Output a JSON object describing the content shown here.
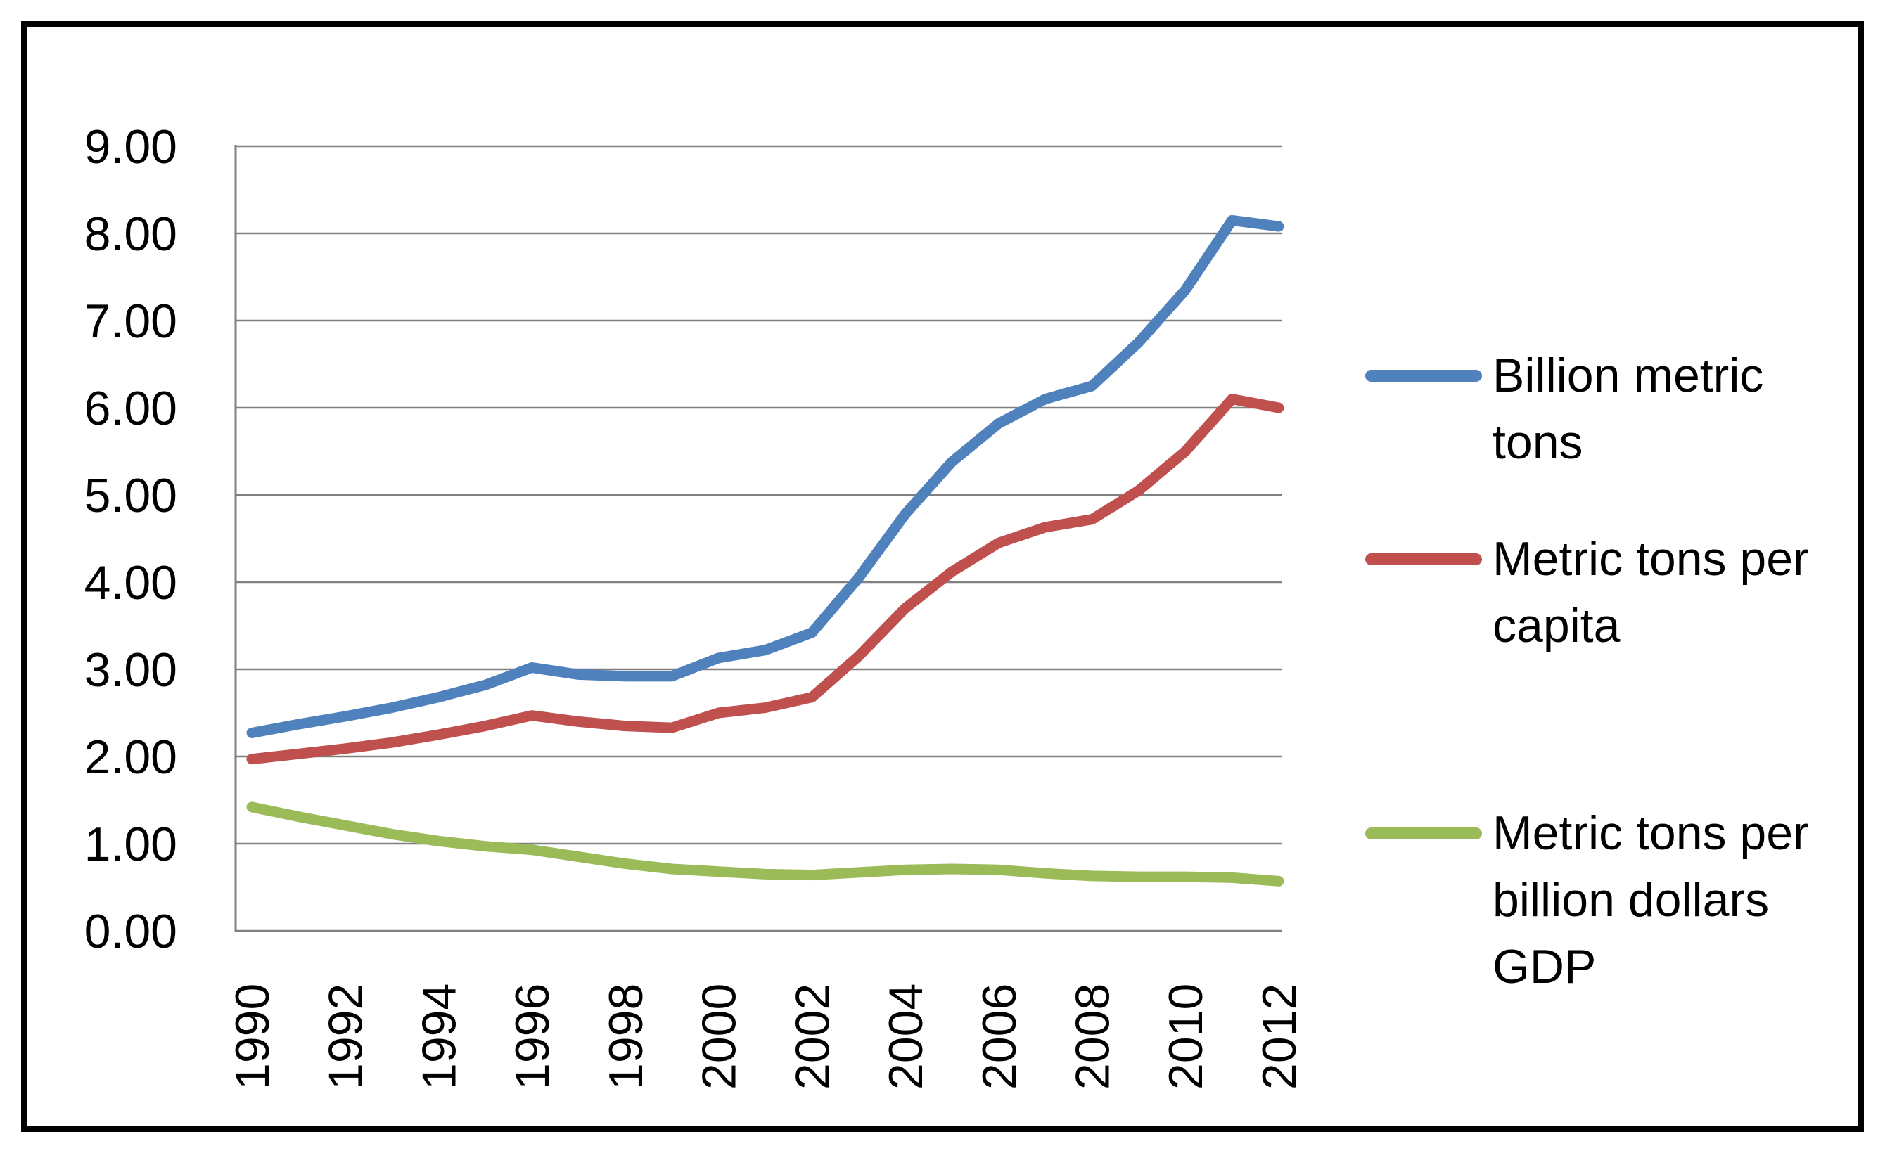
{
  "legend": {
    "items": [
      {
        "label": "Billion metric tons",
        "color": "#4F81BD"
      },
      {
        "label": "Metric tons per capita",
        "color": "#C0504D"
      },
      {
        "label": "Metric tons per billion dollars GDP",
        "color": "#9BBB59"
      }
    ]
  },
  "colors": {
    "gridline": "#808080",
    "axis_line": "#808080",
    "text": "#000000",
    "frame": "#000000",
    "background": "#FFFFFF"
  },
  "chart_data": {
    "type": "line",
    "title": "",
    "xlabel": "",
    "ylabel": "",
    "x": [
      1990,
      1991,
      1992,
      1993,
      1994,
      1995,
      1996,
      1997,
      1998,
      1999,
      2000,
      2001,
      2002,
      2003,
      2004,
      2005,
      2006,
      2007,
      2008,
      2009,
      2010,
      2011,
      2012
    ],
    "series": [
      {
        "name": "Billion metric tons",
        "color": "#4F81BD",
        "values": [
          2.27,
          2.37,
          2.46,
          2.56,
          2.68,
          2.82,
          3.02,
          2.94,
          2.92,
          2.92,
          3.13,
          3.22,
          3.42,
          4.05,
          4.78,
          5.38,
          5.82,
          6.1,
          6.25,
          6.75,
          7.35,
          8.15,
          8.08
        ]
      },
      {
        "name": "Metric tons per capita",
        "color": "#C0504D",
        "values": [
          1.97,
          2.03,
          2.09,
          2.16,
          2.25,
          2.35,
          2.47,
          2.4,
          2.35,
          2.33,
          2.5,
          2.56,
          2.68,
          3.15,
          3.7,
          4.12,
          4.45,
          4.63,
          4.72,
          5.05,
          5.5,
          6.1,
          6.0
        ]
      },
      {
        "name": "Metric tons per billion dollars GDP",
        "color": "#9BBB59",
        "values": [
          1.42,
          1.31,
          1.21,
          1.11,
          1.03,
          0.97,
          0.93,
          0.85,
          0.77,
          0.71,
          0.68,
          0.65,
          0.64,
          0.67,
          0.7,
          0.71,
          0.7,
          0.66,
          0.63,
          0.62,
          0.62,
          0.61,
          0.57
        ]
      }
    ],
    "ylim": [
      0,
      9
    ],
    "y_tick_labels": [
      "0.00",
      "1.00",
      "2.00",
      "3.00",
      "4.00",
      "5.00",
      "6.00",
      "7.00",
      "8.00",
      "9.00"
    ],
    "x_tick_labels": [
      "1990",
      "1992",
      "1994",
      "1996",
      "1998",
      "2000",
      "2002",
      "2004",
      "2006",
      "2008",
      "2010",
      "2012"
    ],
    "grid": true,
    "legend_position": "right"
  }
}
